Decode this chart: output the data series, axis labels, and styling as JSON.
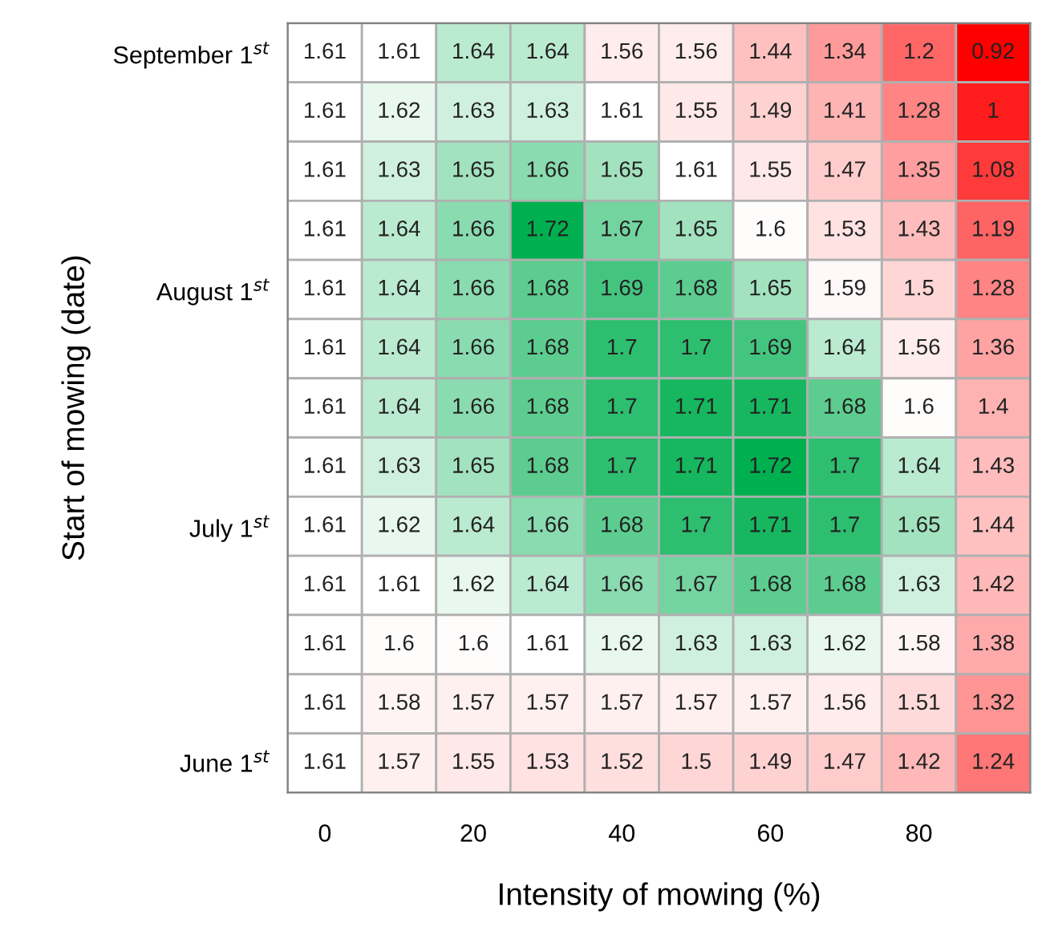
{
  "chart_data": {
    "type": "heatmap",
    "xlabel": "Intensity of mowing (%)",
    "ylabel": "Start of mowing (date)",
    "categories": [
      "0",
      null,
      "20",
      null,
      "40",
      null,
      "60",
      null,
      "80",
      null
    ],
    "y_categories": [
      "September 1$^{st}$",
      null,
      null,
      null,
      "August 1$^{st}$",
      null,
      null,
      null,
      "July 1$^{st}$",
      null,
      null,
      null,
      "June 1$^{st}$"
    ],
    "colors": [
      "#ff0000",
      "#ffffff",
      "#00b050"
    ],
    "data_labels": true,
    "cells": [
      [
        1.61,
        1.61,
        1.64,
        1.64,
        1.56,
        1.56,
        1.44,
        1.34,
        1.2,
        0.92
      ],
      [
        1.61,
        1.62,
        1.63,
        1.63,
        1.61,
        1.55,
        1.49,
        1.41,
        1.28,
        1
      ],
      [
        1.61,
        1.63,
        1.65,
        1.66,
        1.65,
        1.61,
        1.55,
        1.47,
        1.35,
        1.08
      ],
      [
        1.61,
        1.64,
        1.66,
        1.72,
        1.67,
        1.65,
        1.6,
        1.53,
        1.43,
        1.19
      ],
      [
        1.61,
        1.64,
        1.66,
        1.68,
        1.69,
        1.68,
        1.65,
        1.59,
        1.5,
        1.28
      ],
      [
        1.61,
        1.64,
        1.66,
        1.68,
        1.7,
        1.7,
        1.69,
        1.64,
        1.56,
        1.36
      ],
      [
        1.61,
        1.64,
        1.66,
        1.68,
        1.7,
        1.71,
        1.71,
        1.68,
        1.6,
        1.4
      ],
      [
        1.61,
        1.63,
        1.65,
        1.68,
        1.7,
        1.71,
        1.72,
        1.7,
        1.64,
        1.43
      ],
      [
        1.61,
        1.62,
        1.64,
        1.66,
        1.68,
        1.7,
        1.71,
        1.7,
        1.65,
        1.44
      ],
      [
        1.61,
        1.61,
        1.62,
        1.64,
        1.66,
        1.67,
        1.68,
        1.68,
        1.63,
        1.42
      ],
      [
        1.61,
        1.6,
        1.6,
        1.61,
        1.62,
        1.63,
        1.63,
        1.62,
        1.58,
        1.38
      ],
      [
        1.61,
        1.58,
        1.57,
        1.57,
        1.57,
        1.57,
        1.57,
        1.56,
        1.51,
        1.32
      ],
      [
        1.61,
        1.57,
        1.55,
        1.53,
        1.52,
        1.5,
        1.49,
        1.47,
        1.42,
        1.24
      ]
    ]
  }
}
